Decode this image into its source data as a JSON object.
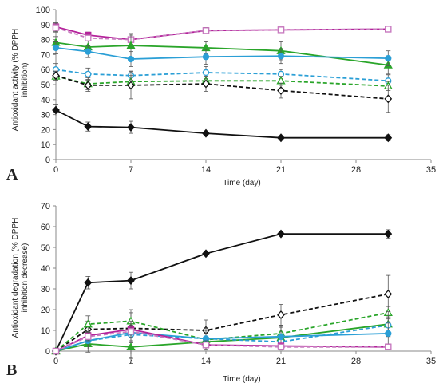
{
  "chart_data": [
    {
      "type": "line",
      "panel": "A",
      "xlabel": "Time (day)",
      "ylabel_lines": [
        "Antioxidant activity (% DPPH",
        "inhibition)"
      ],
      "xlim": [
        0,
        35
      ],
      "ylim": [
        0,
        100
      ],
      "xticks": [
        0,
        7,
        14,
        21,
        28,
        35
      ],
      "yticks": [
        0,
        10,
        20,
        30,
        40,
        50,
        60,
        70,
        80,
        90,
        100
      ],
      "grid": false,
      "series": [
        {
          "color": "#b5239b",
          "marker": "square",
          "filled": true,
          "dashed": false,
          "x": [
            0,
            3,
            7,
            14,
            21,
            31
          ],
          "y": [
            88.5,
            83,
            80,
            86,
            86.5,
            87
          ],
          "err": [
            3,
            2,
            4,
            2,
            1,
            1
          ]
        },
        {
          "color": "#c77bbf",
          "marker": "square",
          "filled": false,
          "dashed": true,
          "x": [
            0,
            3,
            7,
            14,
            21,
            31
          ],
          "y": [
            88,
            81,
            80,
            86,
            86.5,
            87
          ],
          "err": [
            3,
            2,
            3,
            2,
            1,
            1
          ]
        },
        {
          "color": "#2aa52a",
          "marker": "triangle",
          "filled": true,
          "dashed": false,
          "x": [
            0,
            3,
            7,
            14,
            21,
            31
          ],
          "y": [
            78,
            75,
            76,
            74.5,
            72.5,
            63
          ],
          "err": [
            4,
            4,
            8,
            4,
            6,
            6
          ]
        },
        {
          "color": "#2b9fd6",
          "marker": "circle",
          "filled": true,
          "dashed": false,
          "x": [
            0,
            3,
            7,
            14,
            21,
            31
          ],
          "y": [
            74.5,
            72,
            67,
            68.5,
            69,
            67.5
          ],
          "err": [
            4,
            4,
            5,
            5,
            5,
            5
          ]
        },
        {
          "color": "#2b9fd6",
          "marker": "circle",
          "filled": false,
          "dashed": true,
          "x": [
            0,
            3,
            7,
            14,
            21,
            31
          ],
          "y": [
            60,
            57,
            56,
            58,
            57,
            52.5
          ],
          "err": [
            4,
            4,
            3,
            4,
            3,
            4
          ]
        },
        {
          "color": "#2aa52a",
          "marker": "triangle",
          "filled": false,
          "dashed": true,
          "x": [
            0,
            3,
            7,
            14,
            21,
            31
          ],
          "y": [
            55.5,
            50.5,
            52,
            52.5,
            52.5,
            49
          ],
          "err": [
            3,
            4,
            4,
            3,
            3,
            3
          ]
        },
        {
          "color": "#111111",
          "marker": "diamond",
          "filled": false,
          "dashed": true,
          "x": [
            0,
            3,
            7,
            14,
            21,
            31
          ],
          "y": [
            56,
            49.5,
            49.5,
            50.5,
            46,
            40.5
          ],
          "err": [
            3,
            4,
            9,
            5,
            5,
            9
          ]
        },
        {
          "color": "#111111",
          "marker": "diamond",
          "filled": true,
          "dashed": false,
          "x": [
            0,
            3,
            7,
            14,
            21,
            31
          ],
          "y": [
            33,
            22,
            21.5,
            17.5,
            14.5,
            14.5
          ],
          "err": [
            4,
            3,
            4,
            1,
            1,
            2
          ]
        }
      ]
    },
    {
      "type": "line",
      "panel": "B",
      "xlabel": "Time (day)",
      "ylabel_lines": [
        "Antioxidant degradation (% DPPH",
        "inhibition decrease)"
      ],
      "xlim": [
        0,
        35
      ],
      "ylim": [
        0,
        70
      ],
      "xticks": [
        0,
        7,
        14,
        21,
        28,
        35
      ],
      "yticks": [
        0,
        10,
        20,
        30,
        40,
        50,
        60,
        70
      ],
      "grid": false,
      "series": [
        {
          "color": "#111111",
          "marker": "diamond",
          "filled": true,
          "dashed": false,
          "x": [
            0,
            3,
            7,
            14,
            21,
            31
          ],
          "y": [
            0,
            33,
            34,
            47,
            56.5,
            56.5
          ],
          "err": [
            0,
            3,
            4,
            1,
            1,
            2
          ]
        },
        {
          "color": "#111111",
          "marker": "diamond",
          "filled": false,
          "dashed": true,
          "x": [
            0,
            3,
            7,
            14,
            21,
            31
          ],
          "y": [
            0,
            10.5,
            11,
            10,
            17.5,
            27.5
          ],
          "err": [
            0,
            4,
            9,
            5,
            5,
            9
          ]
        },
        {
          "color": "#2aa52a",
          "marker": "triangle",
          "filled": false,
          "dashed": true,
          "x": [
            0,
            3,
            7,
            14,
            21,
            31
          ],
          "y": [
            0,
            13,
            14.5,
            5.5,
            8.5,
            18.5
          ],
          "err": [
            0,
            4,
            4,
            3,
            3,
            3
          ]
        },
        {
          "color": "#2aa52a",
          "marker": "triangle",
          "filled": true,
          "dashed": false,
          "x": [
            0,
            3,
            7,
            14,
            21,
            31
          ],
          "y": [
            0,
            3.5,
            2,
            4.5,
            6.5,
            13
          ],
          "err": [
            0,
            4,
            8,
            4,
            6,
            6
          ]
        },
        {
          "color": "#2b9fd6",
          "marker": "circle",
          "filled": false,
          "dashed": true,
          "x": [
            0,
            3,
            7,
            14,
            21,
            31
          ],
          "y": [
            0,
            5,
            8,
            6,
            4.5,
            12.5
          ],
          "err": [
            0,
            4,
            3,
            4,
            3,
            4
          ]
        },
        {
          "color": "#2b9fd6",
          "marker": "circle",
          "filled": true,
          "dashed": false,
          "x": [
            0,
            3,
            7,
            14,
            21,
            31
          ],
          "y": [
            0,
            5,
            9,
            6,
            7,
            8.5
          ],
          "err": [
            0,
            4,
            5,
            5,
            5,
            5
          ]
        },
        {
          "color": "#b5239b",
          "marker": "square",
          "filled": true,
          "dashed": false,
          "x": [
            0,
            3,
            7,
            14,
            21,
            31
          ],
          "y": [
            0,
            7.5,
            10.5,
            3,
            2.5,
            2
          ],
          "err": [
            0,
            2,
            4,
            2,
            1,
            1
          ]
        },
        {
          "color": "#c77bbf",
          "marker": "square",
          "filled": false,
          "dashed": true,
          "x": [
            0,
            3,
            7,
            14,
            21,
            31
          ],
          "y": [
            0,
            7,
            9.5,
            3,
            2,
            2
          ],
          "err": [
            0,
            2,
            3,
            2,
            1,
            1
          ]
        }
      ]
    }
  ]
}
